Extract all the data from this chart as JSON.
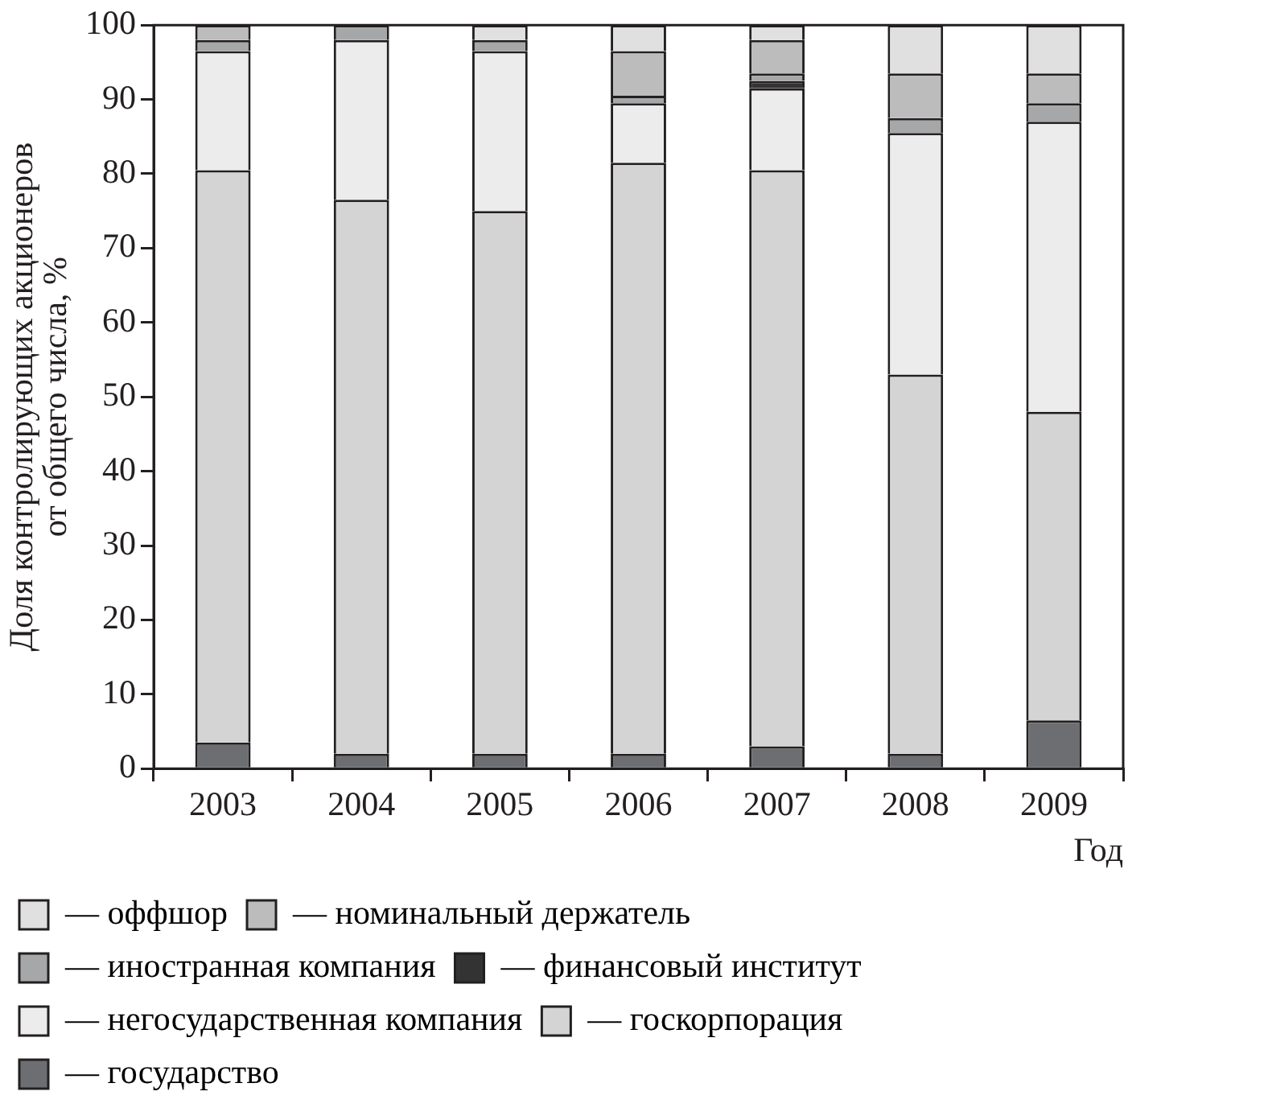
{
  "chart_data": {
    "type": "bar",
    "stacked": true,
    "xlabel": "Год",
    "ylabel": "Доля контролирующих акционеров от общего числа, %",
    "categories": [
      "2003",
      "2004",
      "2005",
      "2006",
      "2007",
      "2008",
      "2009"
    ],
    "ylim": [
      0,
      100
    ],
    "yticks": [
      0,
      10,
      20,
      30,
      40,
      50,
      60,
      70,
      80,
      90,
      100
    ],
    "grid": false,
    "legend": "bottom",
    "series": [
      {
        "name": "— государство",
        "color": "#6d6e71",
        "values": [
          3.5,
          2,
          2,
          2,
          3,
          2,
          6.5
        ]
      },
      {
        "name": "— госкорпорация",
        "color": "#d4d4d4",
        "values": [
          77,
          74.5,
          73,
          79.5,
          77.5,
          51,
          41.5
        ]
      },
      {
        "name": "— негосударственная компания",
        "color": "#ececec",
        "values": [
          16,
          21.5,
          21.5,
          8,
          11,
          32.5,
          39
        ]
      },
      {
        "name": "— финансовый институт",
        "color": "#333333",
        "values": [
          0,
          0,
          0,
          0,
          1,
          0,
          0
        ]
      },
      {
        "name": "— иностранная компания",
        "color": "#a6a7a9",
        "values": [
          1.5,
          2,
          1.5,
          1,
          1,
          2,
          2.5
        ]
      },
      {
        "name": "— номинальный держатель",
        "color": "#bcbcbc",
        "values": [
          2,
          0,
          0,
          6,
          4.5,
          6,
          4
        ]
      },
      {
        "name": "— оффшор",
        "color": "#e0e0e1",
        "values": [
          0,
          0,
          2,
          3.5,
          2,
          6.5,
          6.5
        ]
      }
    ]
  }
}
